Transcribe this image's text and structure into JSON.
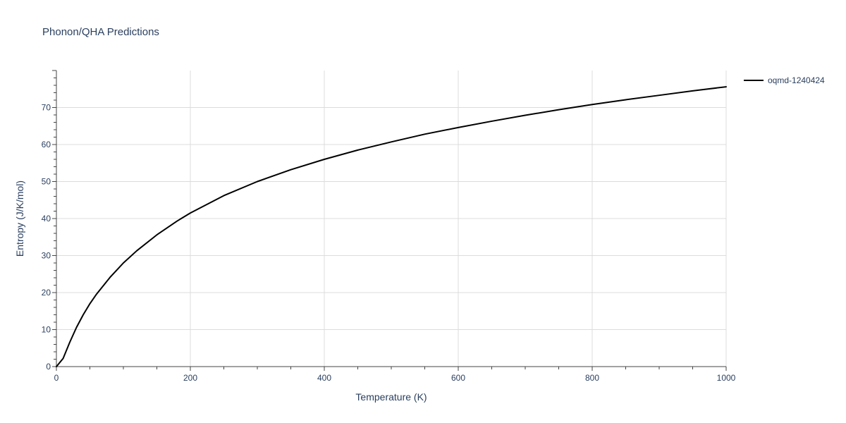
{
  "chart_data": {
    "type": "line",
    "title": "Phonon/QHA Predictions",
    "xlabel": "Temperature (K)",
    "ylabel": "Entropy (J/K/mol)",
    "xlim": [
      0,
      1000
    ],
    "ylim": [
      0,
      80
    ],
    "x_ticks": [
      0,
      200,
      400,
      600,
      800,
      1000
    ],
    "y_ticks": [
      0,
      10,
      20,
      30,
      40,
      50,
      60,
      70
    ],
    "x_tick_labels": [
      "0",
      "200",
      "400",
      "600",
      "800",
      "1000"
    ],
    "y_tick_labels": [
      "0",
      "10",
      "20",
      "30",
      "40",
      "50",
      "60",
      "70"
    ],
    "grid": true,
    "legend_position": "top-right",
    "series": [
      {
        "name": "oqmd-1240424",
        "color": "#000000",
        "x": [
          0,
          10,
          20,
          30,
          40,
          50,
          60,
          80,
          100,
          120,
          150,
          180,
          200,
          250,
          300,
          350,
          400,
          450,
          500,
          550,
          600,
          650,
          700,
          750,
          800,
          850,
          900,
          950,
          1000
        ],
        "y": [
          0,
          2.2,
          6.6,
          10.6,
          14.0,
          17.0,
          19.6,
          24.1,
          28.0,
          31.3,
          35.6,
          39.3,
          41.5,
          46.2,
          50.0,
          53.2,
          56.0,
          58.5,
          60.7,
          62.8,
          64.6,
          66.3,
          67.9,
          69.4,
          70.8,
          72.1,
          73.3,
          74.5,
          75.6
        ]
      }
    ]
  }
}
